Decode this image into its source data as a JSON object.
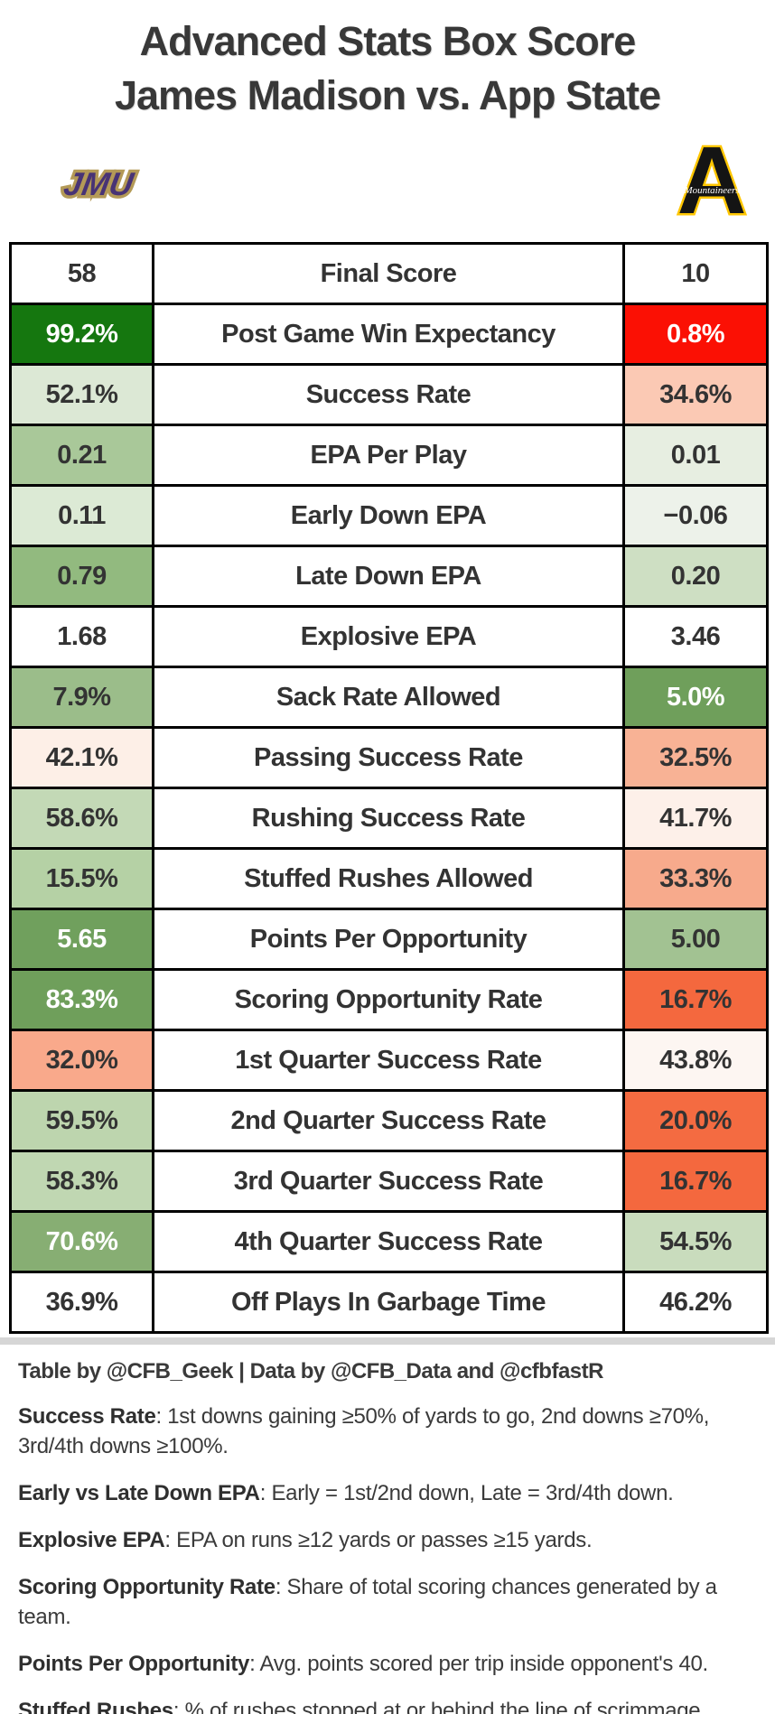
{
  "title": {
    "line1": "Advanced Stats Box Score",
    "line2": "James Madison vs. App State"
  },
  "teams": {
    "jmu": {
      "name": "James Madison",
      "logo_text": "JMU",
      "purple": "#483375",
      "gold": "#b49a57"
    },
    "app": {
      "name": "App State",
      "logo_letter": "A",
      "logo_script": "Mountaineers",
      "black": "#141414",
      "gold": "#ffc600"
    }
  },
  "table": {
    "rows": [
      {
        "label": "Final Score",
        "jmu": {
          "value": "58",
          "bg": "#ffffff",
          "fg": "#333333"
        },
        "app": {
          "value": "10",
          "bg": "#ffffff",
          "fg": "#333333"
        }
      },
      {
        "label": "Post Game Win Expectancy",
        "jmu": {
          "value": "99.2%",
          "bg": "#15770f",
          "fg": "#ffffff"
        },
        "app": {
          "value": "0.8%",
          "bg": "#fb1004",
          "fg": "#ffffff"
        }
      },
      {
        "label": "Success Rate",
        "jmu": {
          "value": "52.1%",
          "bg": "#dce8d5",
          "fg": "#333333"
        },
        "app": {
          "value": "34.6%",
          "bg": "#fbc9b4",
          "fg": "#333333"
        }
      },
      {
        "label": "EPA Per Play",
        "jmu": {
          "value": "0.21",
          "bg": "#a9c899",
          "fg": "#333333"
        },
        "app": {
          "value": "0.01",
          "bg": "#e7eee1",
          "fg": "#333333"
        }
      },
      {
        "label": "Early Down EPA",
        "jmu": {
          "value": "0.11",
          "bg": "#dcead5",
          "fg": "#333333"
        },
        "app": {
          "value": "−0.06",
          "bg": "#edf2ea",
          "fg": "#333333"
        }
      },
      {
        "label": "Late Down EPA",
        "jmu": {
          "value": "0.79",
          "bg": "#92ba7f",
          "fg": "#333333"
        },
        "app": {
          "value": "0.20",
          "bg": "#cedfc3",
          "fg": "#333333"
        }
      },
      {
        "label": "Explosive EPA",
        "jmu": {
          "value": "1.68",
          "bg": "#ffffff",
          "fg": "#333333"
        },
        "app": {
          "value": "3.46",
          "bg": "#ffffff",
          "fg": "#333333"
        }
      },
      {
        "label": "Sack Rate Allowed",
        "jmu": {
          "value": "7.9%",
          "bg": "#9bbd8a",
          "fg": "#333333"
        },
        "app": {
          "value": "5.0%",
          "bg": "#6f9f5b",
          "fg": "#ffffff"
        }
      },
      {
        "label": "Passing Success Rate",
        "jmu": {
          "value": "42.1%",
          "bg": "#fdefe7",
          "fg": "#333333"
        },
        "app": {
          "value": "32.5%",
          "bg": "#f8b295",
          "fg": "#333333"
        }
      },
      {
        "label": "Rushing Success Rate",
        "jmu": {
          "value": "58.6%",
          "bg": "#c3d9b6",
          "fg": "#333333"
        },
        "app": {
          "value": "41.7%",
          "bg": "#fdf0e9",
          "fg": "#333333"
        }
      },
      {
        "label": "Stuffed Rushes Allowed",
        "jmu": {
          "value": "15.5%",
          "bg": "#b5d1a5",
          "fg": "#333333"
        },
        "app": {
          "value": "33.3%",
          "bg": "#f7aa8c",
          "fg": "#333333"
        }
      },
      {
        "label": "Points Per Opportunity",
        "jmu": {
          "value": "5.65",
          "bg": "#70a05d",
          "fg": "#ffffff"
        },
        "app": {
          "value": "5.00",
          "bg": "#a2c292",
          "fg": "#333333"
        }
      },
      {
        "label": "Scoring Opportunity Rate",
        "jmu": {
          "value": "83.3%",
          "bg": "#6f9f5b",
          "fg": "#ffffff"
        },
        "app": {
          "value": "16.7%",
          "bg": "#f4683e",
          "fg": "#333333"
        }
      },
      {
        "label": "1st Quarter Success Rate",
        "jmu": {
          "value": "32.0%",
          "bg": "#f9a98b",
          "fg": "#333333"
        },
        "app": {
          "value": "43.8%",
          "bg": "#fdf6f2",
          "fg": "#333333"
        }
      },
      {
        "label": "2nd Quarter Success Rate",
        "jmu": {
          "value": "59.5%",
          "bg": "#bdd5ae",
          "fg": "#333333"
        },
        "app": {
          "value": "20.0%",
          "bg": "#f46b41",
          "fg": "#333333"
        }
      },
      {
        "label": "3rd Quarter Success Rate",
        "jmu": {
          "value": "58.3%",
          "bg": "#c0d7b2",
          "fg": "#333333"
        },
        "app": {
          "value": "16.7%",
          "bg": "#f4683e",
          "fg": "#333333"
        }
      },
      {
        "label": "4th Quarter Success Rate",
        "jmu": {
          "value": "70.6%",
          "bg": "#87ae73",
          "fg": "#ffffff"
        },
        "app": {
          "value": "54.5%",
          "bg": "#c9dcbd",
          "fg": "#333333"
        }
      },
      {
        "label": "Off Plays In Garbage Time",
        "jmu": {
          "value": "36.9%",
          "bg": "#ffffff",
          "fg": "#333333"
        },
        "app": {
          "value": "46.2%",
          "bg": "#ffffff",
          "fg": "#333333"
        }
      }
    ]
  },
  "footer": {
    "credit": "Table by @CFB_Geek | Data by @CFB_Data and @cfbfastR",
    "notes": [
      {
        "term": "Success Rate",
        "text": ": 1st downs gaining ≥50% of yards to go, 2nd downs ≥70%, 3rd/4th downs ≥100%."
      },
      {
        "term": "Early vs Late Down EPA",
        "text": ": Early = 1st/2nd down, Late = 3rd/4th down."
      },
      {
        "term": "Explosive EPA",
        "text": ": EPA on runs ≥12 yards or passes ≥15 yards."
      },
      {
        "term": "Scoring Opportunity Rate",
        "text": ": Share of total scoring chances generated by a team."
      },
      {
        "term": "Points Per Opportunity",
        "text": ": Avg. points scored per trip inside opponent's 40."
      },
      {
        "term": "Stuffed Rushes",
        "text": ": % of rushes stopped at or behind the line of scrimmage."
      }
    ]
  },
  "chart_data": {
    "type": "table",
    "title": "Advanced Stats Box Score — James Madison vs. App State",
    "categories": [
      "Final Score",
      "Post Game Win Expectancy",
      "Success Rate",
      "EPA Per Play",
      "Early Down EPA",
      "Late Down EPA",
      "Explosive EPA",
      "Sack Rate Allowed",
      "Passing Success Rate",
      "Rushing Success Rate",
      "Stuffed Rushes Allowed",
      "Points Per Opportunity",
      "Scoring Opportunity Rate",
      "1st Quarter Success Rate",
      "2nd Quarter Success Rate",
      "3rd Quarter Success Rate",
      "4th Quarter Success Rate",
      "Off Plays In Garbage Time"
    ],
    "series": [
      {
        "name": "James Madison",
        "values": [
          58,
          99.2,
          52.1,
          0.21,
          0.11,
          0.79,
          1.68,
          7.9,
          42.1,
          58.6,
          15.5,
          5.65,
          83.3,
          32.0,
          59.5,
          58.3,
          70.6,
          36.9
        ]
      },
      {
        "name": "App State",
        "values": [
          10,
          0.8,
          34.6,
          0.01,
          -0.06,
          0.2,
          3.46,
          5.0,
          32.5,
          41.7,
          33.3,
          5.0,
          16.7,
          43.8,
          20.0,
          16.7,
          54.5,
          46.2
        ]
      }
    ],
    "legend_position": "none",
    "grid": true
  }
}
